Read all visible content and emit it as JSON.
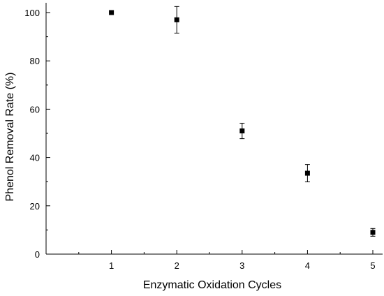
{
  "chart_data": {
    "type": "scatter",
    "title": "",
    "xlabel": "Enzymatic Oxidation Cycles",
    "ylabel": "Phenol Removal Rate (%)",
    "xlim": [
      0.5,
      5
    ],
    "ylim": [
      0,
      105
    ],
    "x_ticks": [
      1,
      2,
      3,
      4,
      5
    ],
    "y_ticks": [
      0,
      20,
      40,
      60,
      80,
      100
    ],
    "x_tick_labels": [
      "1",
      "2",
      "3",
      "4",
      "5"
    ],
    "y_tick_labels": [
      "0",
      "20",
      "40",
      "60",
      "80",
      "100"
    ],
    "grid": false,
    "legend": "none",
    "marker": "filled-square",
    "series": [
      {
        "x": [
          1,
          2,
          3,
          4,
          5
        ],
        "y": [
          100,
          97,
          51,
          33.5,
          9
        ],
        "error": [
          0,
          5.5,
          3.2,
          3.6,
          1.6
        ]
      }
    ]
  },
  "colors": {
    "axis": "#000000",
    "marker": "#000000"
  }
}
